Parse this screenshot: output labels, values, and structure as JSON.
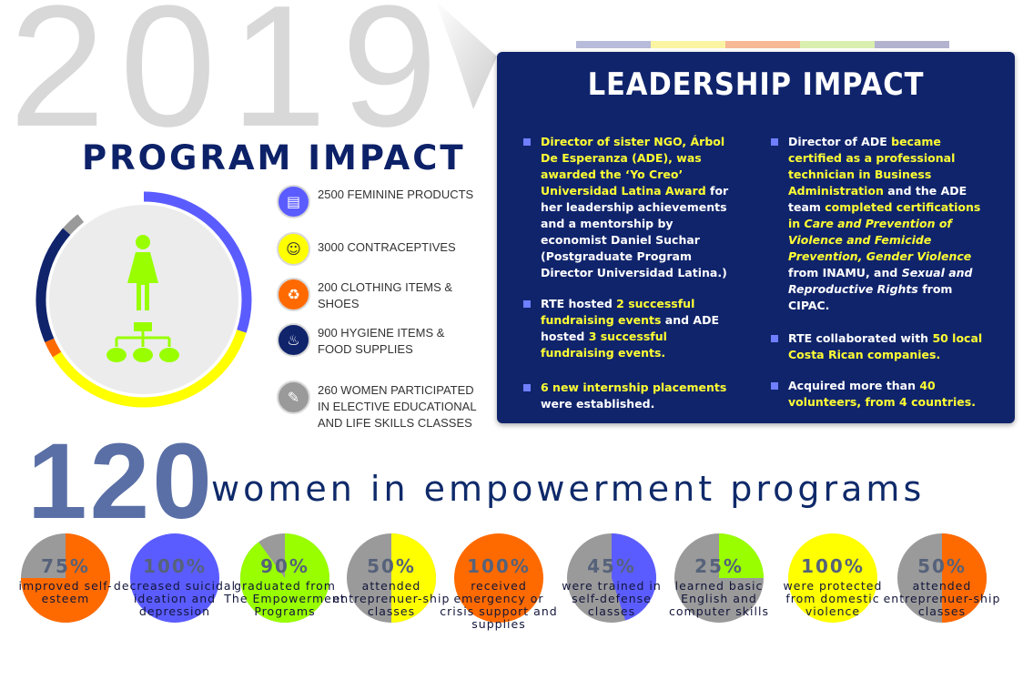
{
  "year": "2019",
  "program_title": "PROGRAM IMPACT",
  "colors": {
    "navy": "#10246c",
    "blue": "#5b5cff",
    "yellow": "#ffff00",
    "orange": "#ff6a00",
    "green": "#99ff00",
    "gray": "#9a9a9a"
  },
  "ring": {
    "segments": [
      {
        "color": "#5b5cff",
        "fraction": 0.3
      },
      {
        "color": "#ffff00",
        "fraction": 0.36
      },
      {
        "color": "#ff6a00",
        "fraction": 0.025
      },
      {
        "color": "#10246c",
        "fraction": 0.18
      },
      {
        "color": "#9a9a9a",
        "fraction": 0.03
      }
    ],
    "center_icons": [
      "woman-icon",
      "network-icon"
    ]
  },
  "stats": [
    {
      "icon": "feminine-products-icon",
      "color": "#5b5cff",
      "text": "2500 FEMININE PRODUCTS"
    },
    {
      "icon": "contraceptives-icon",
      "color": "#ffff00",
      "text": "3000 CONTRACEPTIVES"
    },
    {
      "icon": "clothing-icon",
      "color": "#ff6a00",
      "text": "200 CLOTHING ITEMS & SHOES"
    },
    {
      "icon": "hygiene-food-icon",
      "color": "#10246c",
      "text": "900 HYGIENE ITEMS & FOOD SUPPLIES"
    },
    {
      "icon": "classes-icon",
      "color": "#9a9a9a",
      "text": "260 WOMEN PARTICIPATED IN ELECTIVE EDUCATIONAL AND LIFE SKILLS CLASSES"
    }
  ],
  "top_bar_colors": [
    "#b8bbd9",
    "#fbf5a3",
    "#f7b996",
    "#d9efb0",
    "#b3b3cf"
  ],
  "leadership": {
    "title": "LEADERSHIP IMPACT",
    "left": [
      {
        "parts": [
          {
            "t": "Director of sister NGO, Árbol De Esperanza (ADE), was awarded the ‘Yo Creo’ Universidad Latina Award",
            "h": true
          },
          {
            "t": " for her leadership achievements and a mentorship by economist Daniel Suchar (Postgraduate Program Director Universidad Latina.)",
            "h": false
          }
        ]
      },
      {
        "parts": [
          {
            "t": "RTE hosted ",
            "h": false
          },
          {
            "t": "2 successful fundraising events",
            "h": true
          },
          {
            "t": " and ADE hosted ",
            "h": false
          },
          {
            "t": "3 successful fundraising events.",
            "h": true
          }
        ]
      },
      {
        "parts": [
          {
            "t": "6 new internship placements",
            "h": true
          },
          {
            "t": " were established.",
            "h": false
          }
        ]
      }
    ],
    "right": [
      {
        "parts": [
          {
            "t": "Director of ADE ",
            "h": false
          },
          {
            "t": "became certified as a professional technician in Business Administration",
            "h": true
          },
          {
            "t": " and the ADE team ",
            "h": false
          },
          {
            "t": "completed certifications in ",
            "h": true
          },
          {
            "t": "Care and Prevention of Violence and Femicide Prevention, Gender Violence",
            "h": true,
            "i": true
          },
          {
            "t": " from INAMU, and ",
            "h": false
          },
          {
            "t": "Sexual and Reproductive Rights",
            "h": false,
            "i": true
          },
          {
            "t": " from CIPAC.",
            "h": false
          }
        ]
      },
      {
        "parts": [
          {
            "t": "RTE collaborated with ",
            "h": false
          },
          {
            "t": "50 local Costa Rican companies.",
            "h": true
          }
        ]
      },
      {
        "parts": [
          {
            "t": "Acquired more than ",
            "h": false
          },
          {
            "t": "40 volunteers, from 4 countries.",
            "h": true
          }
        ]
      }
    ]
  },
  "headline": {
    "number": "120",
    "text": "women in empowerment programs"
  },
  "outcomes": [
    {
      "pct": "75%",
      "fraction": 0.75,
      "color": "#ff6a00",
      "label": "improved self-esteem"
    },
    {
      "pct": "100%",
      "fraction": 1.0,
      "color": "#5b5cff",
      "label": "decreased suicidal ideation and depression"
    },
    {
      "pct": "90%",
      "fraction": 0.9,
      "color": "#99ff00",
      "label": "graduated from The Empowerment Programs"
    },
    {
      "pct": "50%",
      "fraction": 0.5,
      "color": "#ffff00",
      "label": "attended entreprenuer-ship classes"
    },
    {
      "pct": "100%",
      "fraction": 1.0,
      "color": "#ff6a00",
      "label": "received emergency or crisis support and supplies"
    },
    {
      "pct": "45%",
      "fraction": 0.45,
      "color": "#5b5cff",
      "label": "were trained in self-defense classes"
    },
    {
      "pct": "25%",
      "fraction": 0.25,
      "color": "#99ff00",
      "label": "learned basic English and computer skills"
    },
    {
      "pct": "100%",
      "fraction": 1.0,
      "color": "#ffff00",
      "label": "were protected from domestic violence"
    },
    {
      "pct": "50%",
      "fraction": 0.5,
      "color": "#ff6a00",
      "label": "attended entreprenuer-ship classes"
    }
  ]
}
